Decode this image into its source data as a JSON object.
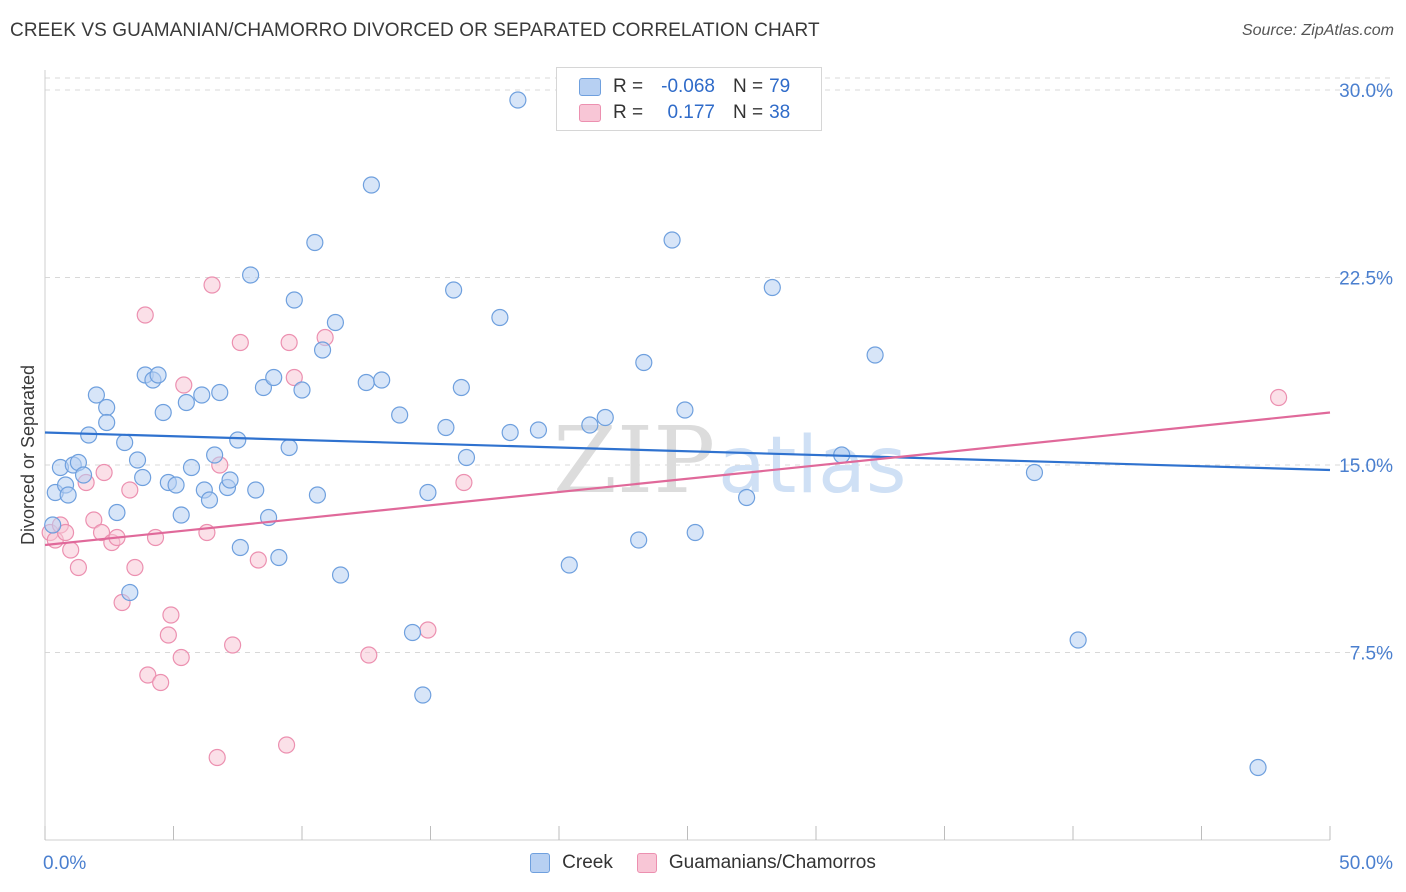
{
  "title": "CREEK VS GUAMANIAN/CHAMORRO DIVORCED OR SEPARATED CORRELATION CHART",
  "source": "Source: ZipAtlas.com",
  "watermark": {
    "zip": "ZIP",
    "atlas": "atlas"
  },
  "legend": {
    "creek": {
      "r_label": "R =",
      "r_value": "-0.068",
      "n_label": "N =",
      "n_value": "79"
    },
    "guam": {
      "r_label": "R =",
      "r_value": "0.177",
      "n_label": "N =",
      "n_value": "38"
    }
  },
  "bottom_legend": {
    "creek": "Creek",
    "guam": "Guamanians/Chamorros"
  },
  "colors": {
    "creek_fill": "#b7d0f2",
    "creek_stroke": "#6fa0de",
    "creek_line": "#2f72cf",
    "guam_fill": "#f8c6d6",
    "guam_stroke": "#ec90b0",
    "guam_line": "#e0699a",
    "grid": "#d8d8d8",
    "axis_text": "#4a7fcf"
  },
  "chart_data": {
    "type": "scatter",
    "title": "CREEK VS GUAMANIAN/CHAMORRO DIVORCED OR SEPARATED CORRELATION CHART",
    "xlabel": "",
    "ylabel": "Divorced or Separated",
    "xlim": [
      0,
      50
    ],
    "ylim": [
      0,
      30.8
    ],
    "x_tick_labels": [
      "0.0%",
      "50.0%"
    ],
    "y_ticks": [
      7.5,
      15.0,
      22.5,
      30.0
    ],
    "y_tick_labels": [
      "7.5%",
      "15.0%",
      "22.5%",
      "30.0%"
    ],
    "grid": true,
    "legend_position": "top-center",
    "series": [
      {
        "name": "Creek",
        "R": -0.068,
        "N": 79,
        "trend": {
          "x": [
            0,
            50
          ],
          "y": [
            16.3,
            14.8
          ]
        },
        "points": [
          [
            0.3,
            12.6
          ],
          [
            0.4,
            13.9
          ],
          [
            0.6,
            14.9
          ],
          [
            0.8,
            14.2
          ],
          [
            0.9,
            13.8
          ],
          [
            1.1,
            15.0
          ],
          [
            1.3,
            15.1
          ],
          [
            1.5,
            14.6
          ],
          [
            1.7,
            16.2
          ],
          [
            2.0,
            17.8
          ],
          [
            2.4,
            17.3
          ],
          [
            2.4,
            16.7
          ],
          [
            2.8,
            13.1
          ],
          [
            3.1,
            15.9
          ],
          [
            3.3,
            9.9
          ],
          [
            3.6,
            15.2
          ],
          [
            3.8,
            14.5
          ],
          [
            3.9,
            18.6
          ],
          [
            4.2,
            18.4
          ],
          [
            4.4,
            18.6
          ],
          [
            4.6,
            17.1
          ],
          [
            4.8,
            14.3
          ],
          [
            5.1,
            14.2
          ],
          [
            5.3,
            13.0
          ],
          [
            5.5,
            17.5
          ],
          [
            5.7,
            14.9
          ],
          [
            6.1,
            17.8
          ],
          [
            6.2,
            14.0
          ],
          [
            6.4,
            13.6
          ],
          [
            6.6,
            15.4
          ],
          [
            6.8,
            17.9
          ],
          [
            7.1,
            14.1
          ],
          [
            7.2,
            14.4
          ],
          [
            7.5,
            16.0
          ],
          [
            7.6,
            11.7
          ],
          [
            8.0,
            22.6
          ],
          [
            8.2,
            14.0
          ],
          [
            8.5,
            18.1
          ],
          [
            8.7,
            12.9
          ],
          [
            8.9,
            18.5
          ],
          [
            9.1,
            11.3
          ],
          [
            9.5,
            15.7
          ],
          [
            9.7,
            21.6
          ],
          [
            10.0,
            18.0
          ],
          [
            10.5,
            23.9
          ],
          [
            10.6,
            13.8
          ],
          [
            10.8,
            19.6
          ],
          [
            11.3,
            20.7
          ],
          [
            11.5,
            10.6
          ],
          [
            12.5,
            18.3
          ],
          [
            12.7,
            26.2
          ],
          [
            13.1,
            18.4
          ],
          [
            13.8,
            17.0
          ],
          [
            14.3,
            8.3
          ],
          [
            14.7,
            5.8
          ],
          [
            14.9,
            13.9
          ],
          [
            15.6,
            16.5
          ],
          [
            15.9,
            22.0
          ],
          [
            16.2,
            18.1
          ],
          [
            16.4,
            15.3
          ],
          [
            17.7,
            20.9
          ],
          [
            18.1,
            16.3
          ],
          [
            18.4,
            29.6
          ],
          [
            19.2,
            16.4
          ],
          [
            20.4,
            11.0
          ],
          [
            21.2,
            16.6
          ],
          [
            21.8,
            16.9
          ],
          [
            23.1,
            12.0
          ],
          [
            23.3,
            19.1
          ],
          [
            24.4,
            24.0
          ],
          [
            24.9,
            17.2
          ],
          [
            25.3,
            12.3
          ],
          [
            27.3,
            13.7
          ],
          [
            28.3,
            22.1
          ],
          [
            31.0,
            15.4
          ],
          [
            32.3,
            19.4
          ],
          [
            38.5,
            14.7
          ],
          [
            40.2,
            8.0
          ],
          [
            47.2,
            2.9
          ]
        ]
      },
      {
        "name": "Guamanians/Chamorros",
        "R": 0.177,
        "N": 38,
        "trend": {
          "x": [
            0,
            50
          ],
          "y": [
            11.8,
            17.1
          ]
        },
        "points": [
          [
            0.2,
            12.3
          ],
          [
            0.4,
            12.0
          ],
          [
            0.6,
            12.6
          ],
          [
            0.8,
            12.3
          ],
          [
            1.0,
            11.6
          ],
          [
            1.3,
            10.9
          ],
          [
            1.6,
            14.3
          ],
          [
            1.9,
            12.8
          ],
          [
            2.2,
            12.3
          ],
          [
            2.3,
            14.7
          ],
          [
            2.6,
            11.9
          ],
          [
            2.8,
            12.1
          ],
          [
            3.0,
            9.5
          ],
          [
            3.3,
            14.0
          ],
          [
            3.5,
            10.9
          ],
          [
            3.9,
            21.0
          ],
          [
            4.0,
            6.6
          ],
          [
            4.3,
            12.1
          ],
          [
            4.5,
            6.3
          ],
          [
            4.8,
            8.2
          ],
          [
            4.9,
            9.0
          ],
          [
            5.3,
            7.3
          ],
          [
            5.4,
            18.2
          ],
          [
            6.3,
            12.3
          ],
          [
            6.5,
            22.2
          ],
          [
            6.7,
            3.3
          ],
          [
            6.8,
            15.0
          ],
          [
            7.3,
            7.8
          ],
          [
            7.6,
            19.9
          ],
          [
            8.3,
            11.2
          ],
          [
            9.4,
            3.8
          ],
          [
            9.5,
            19.9
          ],
          [
            9.7,
            18.5
          ],
          [
            10.9,
            20.1
          ],
          [
            12.6,
            7.4
          ],
          [
            14.9,
            8.4
          ],
          [
            16.3,
            14.3
          ],
          [
            48.0,
            17.7
          ]
        ]
      }
    ]
  }
}
